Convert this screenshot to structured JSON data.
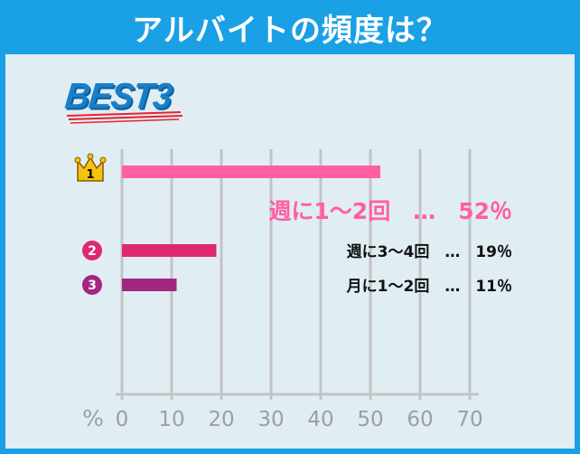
{
  "header": {
    "title": "アルバイトの頻度は？"
  },
  "badge": {
    "text": "BEST3"
  },
  "colors": {
    "accent": "#1aa0e4",
    "rank1": "#ff5fa2",
    "rank2": "#e0286e",
    "rank3": "#a3277f",
    "crown": "#f4c30d"
  },
  "chart_data": {
    "type": "bar",
    "orientation": "horizontal",
    "categories": [
      "週に1～2回",
      "週に3～4回",
      "月に1～2回"
    ],
    "values": [
      52,
      19,
      11
    ],
    "ranks": [
      "1",
      "2",
      "3"
    ],
    "labels": [
      "週に1～2回　…　52％",
      "週に3～4回　…　19％",
      "月に1～2回　…　11％"
    ],
    "xlim": [
      0,
      70
    ],
    "xticks": [
      "0",
      "10",
      "20",
      "30",
      "40",
      "50",
      "60",
      "70"
    ],
    "unit": "%",
    "grid": true
  }
}
